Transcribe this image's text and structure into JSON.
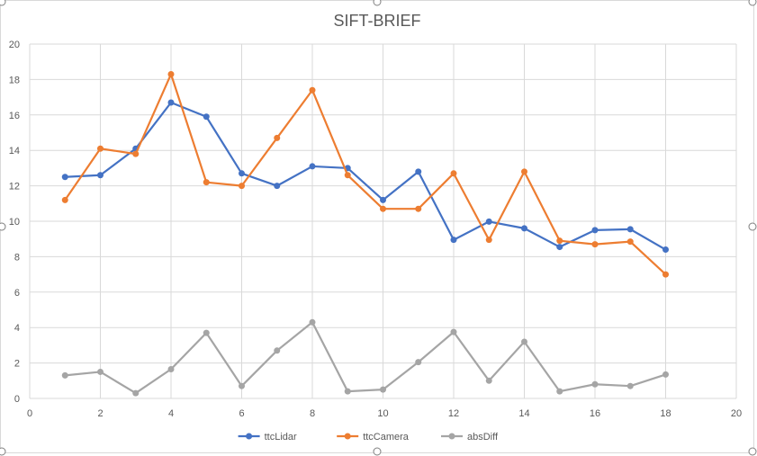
{
  "chart_data": {
    "type": "line",
    "title": "SIFT-BRIEF",
    "xlabel": "",
    "ylabel": "",
    "xlim": [
      0,
      20
    ],
    "ylim": [
      0,
      20
    ],
    "x_ticks": [
      "0",
      "2",
      "4",
      "6",
      "8",
      "10",
      "12",
      "14",
      "16",
      "18",
      "20"
    ],
    "y_ticks": [
      "0",
      "2",
      "4",
      "6",
      "8",
      "10",
      "12",
      "14",
      "16",
      "18",
      "20"
    ],
    "grid": true,
    "legend_position": "bottom",
    "x": [
      1,
      2,
      3,
      4,
      5,
      6,
      7,
      8,
      9,
      10,
      11,
      12,
      13,
      14,
      15,
      16,
      17,
      18
    ],
    "series": [
      {
        "name": "ttcLidar",
        "color": "#4472C4",
        "values": [
          12.5,
          12.6,
          14.1,
          16.7,
          15.9,
          12.7,
          12.0,
          13.1,
          13.0,
          11.2,
          12.8,
          8.95,
          9.98,
          9.6,
          8.55,
          9.5,
          9.55,
          8.4
        ]
      },
      {
        "name": "ttcCamera",
        "color": "#ED7D31",
        "values": [
          11.2,
          14.1,
          13.8,
          18.3,
          12.2,
          12.0,
          14.7,
          17.4,
          12.6,
          10.7,
          10.7,
          12.7,
          8.95,
          12.8,
          8.9,
          8.7,
          8.85,
          7.0
        ]
      },
      {
        "name": "absDiff",
        "color": "#A5A5A5",
        "values": [
          1.3,
          1.5,
          0.3,
          1.65,
          3.7,
          0.7,
          2.7,
          4.3,
          0.4,
          0.5,
          2.05,
          3.75,
          1.0,
          3.2,
          0.4,
          0.8,
          0.7,
          1.35
        ]
      }
    ]
  }
}
